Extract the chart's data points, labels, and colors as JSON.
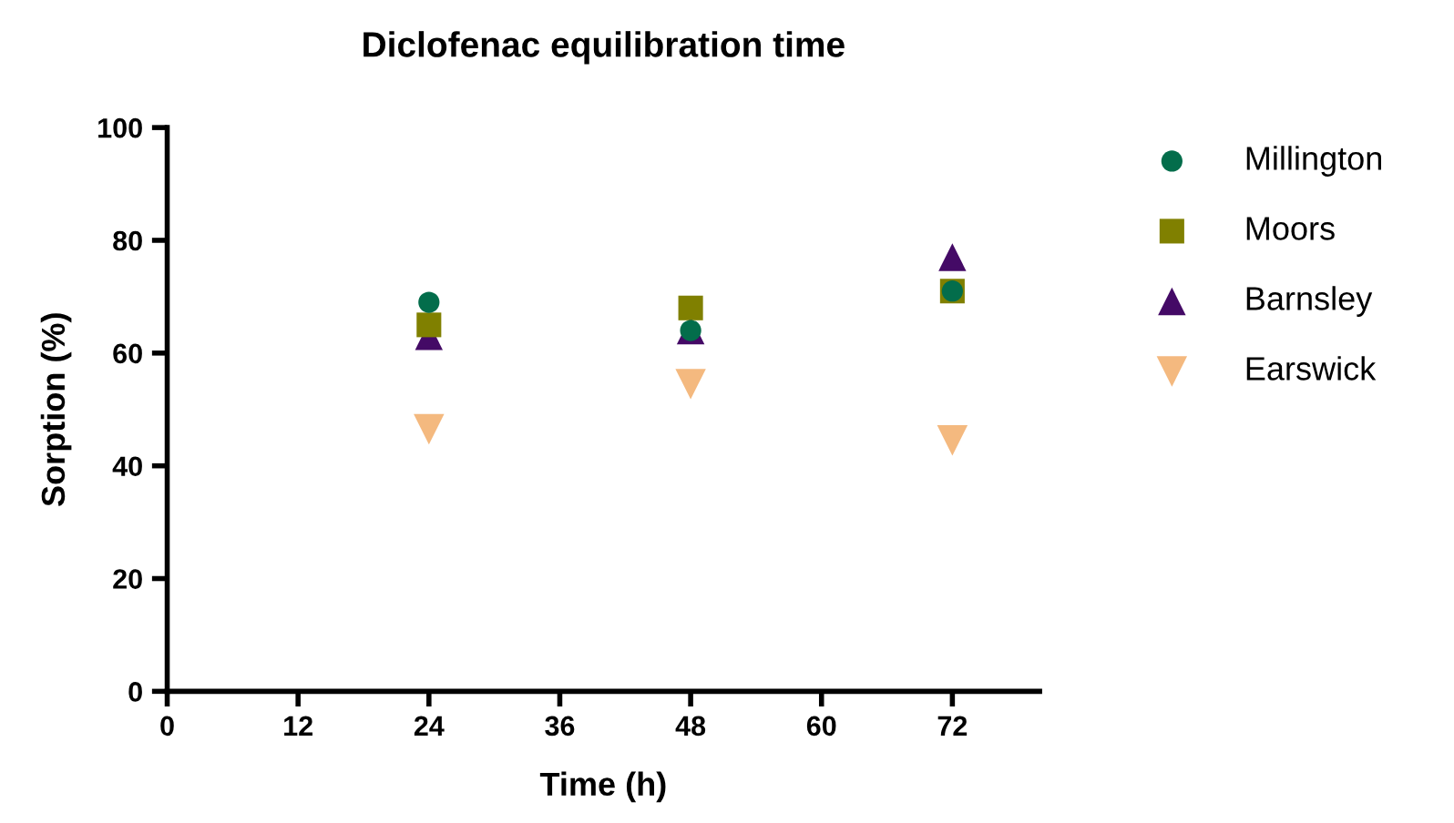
{
  "chart_data": {
    "type": "scatter",
    "title": "Diclofenac equilibration time",
    "xlabel": "Time (h)",
    "ylabel": "Sorption (%)",
    "x": [
      24,
      48,
      72
    ],
    "series": [
      {
        "name": "Millington",
        "color": "#036d4b",
        "marker": "circle",
        "values": [
          69,
          64,
          71
        ]
      },
      {
        "name": "Moors",
        "color": "#808000",
        "marker": "square",
        "values": [
          65,
          68,
          71
        ]
      },
      {
        "name": "Barnsley",
        "color": "#440a66",
        "marker": "triangle",
        "values": [
          63,
          64,
          77
        ]
      },
      {
        "name": "Earswick",
        "color": "#f4b97f",
        "marker": "triangle_down",
        "values": [
          46.5,
          54.5,
          44.5
        ]
      }
    ],
    "xlim": [
      0,
      80
    ],
    "xticks": [
      0,
      12,
      24,
      36,
      48,
      60,
      72
    ],
    "ylim": [
      0,
      100
    ],
    "yticks": [
      0,
      20,
      40,
      60,
      80,
      100
    ],
    "grid": false,
    "legend": "right"
  }
}
